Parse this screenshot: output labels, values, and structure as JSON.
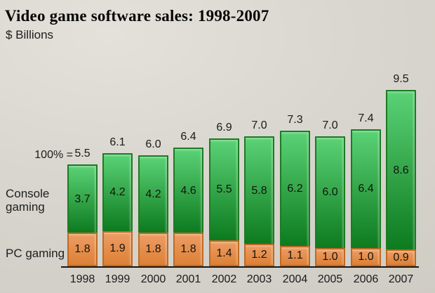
{
  "title": "Video game software sales: 1998-2007",
  "subtitle": "$ Billions",
  "left_labels": {
    "hundred_pct": "100% =",
    "console_line1": "Console",
    "console_line2": "gaming",
    "pc": "PC gaming"
  },
  "chart_data": {
    "type": "bar",
    "stacked": true,
    "title": "Video game software sales: 1998-2007",
    "ylabel": "$ Billions",
    "legend_position": "left",
    "grid": false,
    "categories": [
      "1998",
      "1999",
      "2000",
      "2001",
      "2002",
      "2003",
      "2004",
      "2005",
      "2006",
      "2007"
    ],
    "totals": [
      5.5,
      6.1,
      6.0,
      6.4,
      6.9,
      7.0,
      7.3,
      7.0,
      7.4,
      9.5
    ],
    "series": [
      {
        "name": "Console gaming",
        "values": [
          3.7,
          4.2,
          4.2,
          4.6,
          5.5,
          5.8,
          6.2,
          6.0,
          6.4,
          8.6
        ],
        "color_top": "#5bd276",
        "color_bottom": "#0d7a1e",
        "border_color": "#1d7a24"
      },
      {
        "name": "PC gaming",
        "values": [
          1.8,
          1.9,
          1.8,
          1.8,
          1.4,
          1.2,
          1.1,
          1.0,
          1.0,
          0.9
        ],
        "color_top": "#ec9d64",
        "color_bottom": "#dd8036",
        "border_color": "#bf6a22"
      }
    ],
    "colors": {
      "background": "#d9d6cf",
      "axis": "#161616",
      "text": "#1a1a1a"
    }
  }
}
